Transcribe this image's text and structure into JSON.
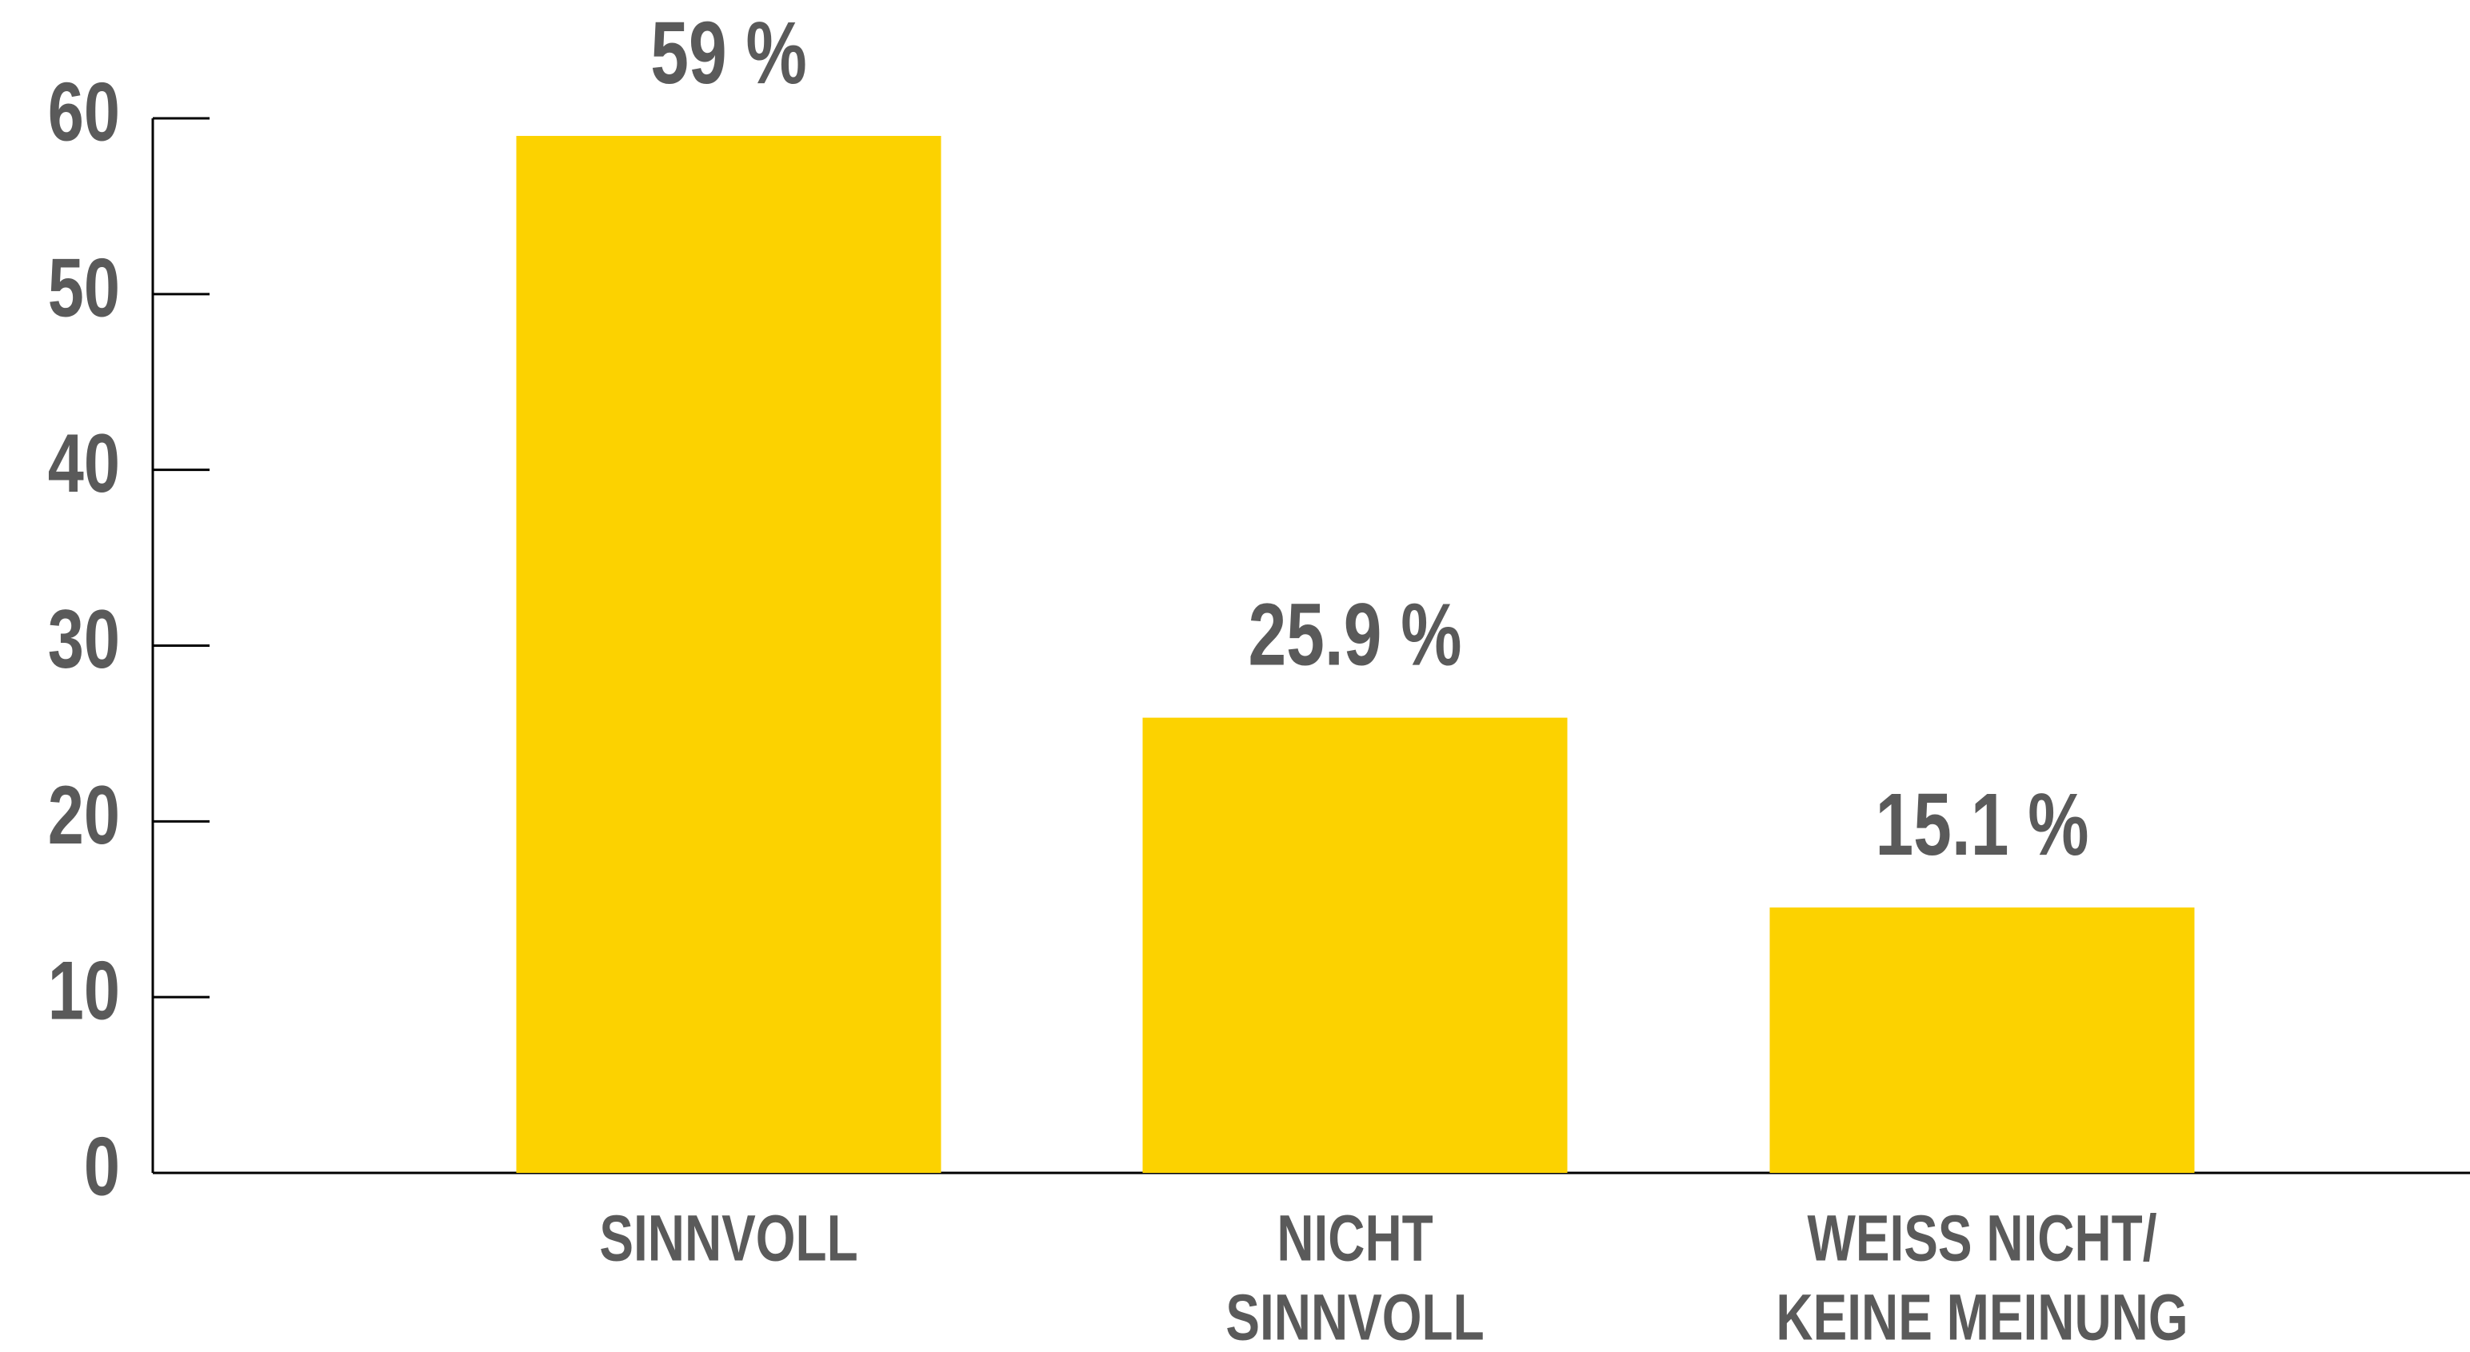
{
  "chart_data": {
    "type": "bar",
    "categories": [
      [
        "SINNVOLL"
      ],
      [
        "NICHT",
        "SINNVOLL"
      ],
      [
        "WEISS NICHT/",
        "KEINE MEINUNG"
      ]
    ],
    "values": [
      59,
      25.9,
      15.1
    ],
    "value_labels": [
      "59 %",
      "25.9 %",
      "15.1 %"
    ],
    "color": "#fcd200",
    "ylim": [
      0,
      60
    ],
    "yticks": [
      0,
      10,
      20,
      30,
      40,
      50,
      60
    ],
    "grid": false
  }
}
